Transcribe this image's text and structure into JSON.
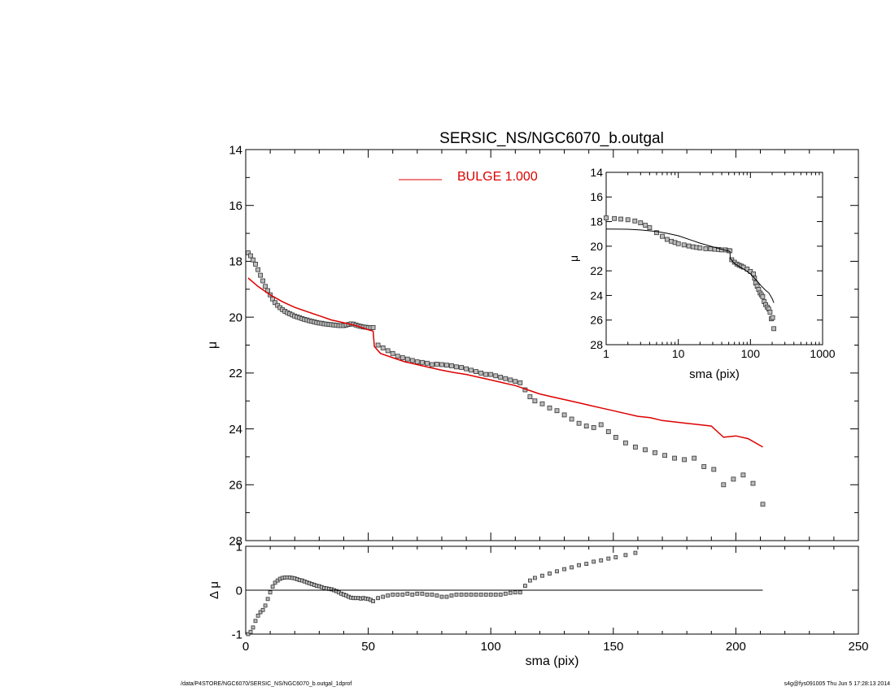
{
  "title": "SERSIC_NS/NGC6070_b.outgal",
  "footer": {
    "left": "/data/P4STORE/NGC6070/SERSIC_NS/NGC6070_b.outgal_1dprof",
    "right": "s4g@fys091005  Thu Jun  5 17:28:13 2014"
  },
  "colors": {
    "model": "#dd0000",
    "data": "#000000",
    "axes": "#000000"
  },
  "chart_data": [
    {
      "id": "main-profile",
      "type": "scatter",
      "title": "SERSIC_NS/NGC6070_b.outgal",
      "xlabel": "",
      "ylabel": "μ",
      "xlim": [
        0,
        250
      ],
      "ylim": [
        28,
        14
      ],
      "y_inverted": true,
      "xticks": [
        0,
        50,
        100,
        150,
        200,
        250
      ],
      "xticklabels": [
        "",
        "",
        "",
        "",
        "",
        ""
      ],
      "yticks": [
        14,
        16,
        18,
        20,
        22,
        24,
        26,
        28
      ],
      "legend": {
        "placement": "top-center",
        "entries": [
          {
            "label": "BULGE  1.000",
            "color": "#dd0000",
            "style": "line"
          }
        ]
      },
      "series": [
        {
          "name": "data",
          "style": "square-markers",
          "x": [
            1,
            2,
            3,
            4,
            5,
            6,
            7,
            8,
            9,
            10,
            11,
            12,
            13,
            14,
            15,
            16,
            17,
            18,
            19,
            20,
            21,
            22,
            23,
            24,
            25,
            26,
            27,
            28,
            29,
            30,
            31,
            32,
            33,
            34,
            35,
            36,
            37,
            38,
            39,
            40,
            41,
            42,
            43,
            44,
            45,
            46,
            47,
            48,
            49,
            50,
            51,
            52,
            54,
            56,
            58,
            60,
            62,
            64,
            66,
            68,
            70,
            72,
            74,
            76,
            78,
            80,
            82,
            84,
            86,
            88,
            90,
            92,
            94,
            96,
            98,
            100,
            102,
            104,
            106,
            108,
            110,
            112,
            114,
            116,
            118,
            121,
            124,
            127,
            130,
            133,
            136,
            139,
            142,
            145,
            148,
            151,
            155,
            159,
            163,
            167,
            171,
            175,
            179,
            183,
            187,
            191,
            195,
            199,
            203,
            207,
            211
          ],
          "y": [
            17.7,
            17.8,
            17.95,
            18.1,
            18.3,
            18.5,
            18.7,
            18.9,
            19.05,
            19.2,
            19.35,
            19.48,
            19.58,
            19.66,
            19.73,
            19.79,
            19.84,
            19.88,
            19.92,
            19.96,
            19.99,
            20.02,
            20.05,
            20.08,
            20.1,
            20.13,
            20.15,
            20.17,
            20.19,
            20.21,
            20.22,
            20.24,
            20.25,
            20.26,
            20.27,
            20.28,
            20.29,
            20.3,
            20.3,
            20.3,
            20.28,
            20.26,
            20.24,
            20.25,
            20.28,
            20.31,
            20.33,
            20.35,
            20.36,
            20.37,
            20.37,
            20.37,
            21.0,
            21.1,
            21.2,
            21.3,
            21.4,
            21.45,
            21.5,
            21.55,
            21.6,
            21.62,
            21.65,
            21.7,
            21.68,
            21.7,
            21.72,
            21.74,
            21.78,
            21.8,
            21.85,
            21.9,
            21.95,
            22.0,
            22.05,
            22.05,
            22.1,
            22.15,
            22.2,
            22.25,
            22.3,
            22.35,
            22.6,
            22.85,
            23.0,
            23.1,
            23.25,
            23.35,
            23.5,
            23.65,
            23.8,
            23.9,
            23.95,
            23.85,
            24.1,
            24.3,
            24.5,
            24.65,
            24.75,
            24.85,
            24.95,
            25.05,
            25.1,
            25.05,
            25.35,
            25.45,
            26.0,
            25.8,
            25.65,
            25.95,
            26.7
          ]
        },
        {
          "name": "BULGE  1.000",
          "style": "line",
          "x": [
            1,
            5,
            10,
            15,
            20,
            25,
            30,
            35,
            40,
            45,
            50,
            52,
            52.5,
            55,
            60,
            65,
            70,
            75,
            80,
            85,
            90,
            95,
            100,
            105,
            110,
            115,
            120,
            125,
            130,
            135,
            140,
            145,
            150,
            155,
            160,
            165,
            170,
            175,
            180,
            185,
            190,
            195,
            200,
            205,
            211
          ],
          "y": [
            18.6,
            18.9,
            19.2,
            19.45,
            19.65,
            19.8,
            19.95,
            20.1,
            20.2,
            20.3,
            20.45,
            20.5,
            21.05,
            21.3,
            21.45,
            21.6,
            21.7,
            21.8,
            21.9,
            21.98,
            22.05,
            22.15,
            22.25,
            22.35,
            22.45,
            22.6,
            22.75,
            22.85,
            22.95,
            23.05,
            23.15,
            23.25,
            23.35,
            23.45,
            23.55,
            23.6,
            23.7,
            23.75,
            23.8,
            23.85,
            23.9,
            24.3,
            24.25,
            24.35,
            24.65
          ]
        }
      ]
    },
    {
      "id": "residuals",
      "type": "scatter",
      "xlabel": "sma (pix)",
      "ylabel": "Δ μ",
      "xlim": [
        0,
        250
      ],
      "ylim": [
        -1,
        1
      ],
      "xticks": [
        0,
        50,
        100,
        150,
        200,
        250
      ],
      "xticklabels": [
        "0",
        "50",
        "100",
        "150",
        "200",
        "250"
      ],
      "yticks": [
        -1,
        0,
        1
      ],
      "series": [
        {
          "name": "residual",
          "style": "square-markers",
          "x": [
            1,
            2,
            3,
            4,
            5,
            6,
            7,
            8,
            9,
            10,
            11,
            12,
            13,
            14,
            15,
            16,
            17,
            18,
            19,
            20,
            21,
            22,
            23,
            24,
            25,
            26,
            27,
            28,
            29,
            30,
            31,
            32,
            33,
            34,
            35,
            36,
            37,
            38,
            39,
            40,
            41,
            42,
            43,
            44,
            45,
            46,
            47,
            48,
            49,
            50,
            51,
            52,
            54,
            56,
            58,
            60,
            62,
            64,
            66,
            68,
            70,
            72,
            74,
            76,
            78,
            80,
            82,
            84,
            86,
            88,
            90,
            92,
            94,
            96,
            98,
            100,
            102,
            104,
            106,
            108,
            110,
            112,
            114,
            116,
            118,
            121,
            124,
            127,
            130,
            133,
            136,
            139,
            142,
            145,
            148,
            151,
            155,
            159
          ],
          "y": [
            -1.0,
            -0.95,
            -0.85,
            -0.7,
            -0.58,
            -0.5,
            -0.45,
            -0.35,
            -0.2,
            -0.05,
            0.08,
            0.17,
            0.22,
            0.26,
            0.28,
            0.29,
            0.29,
            0.29,
            0.28,
            0.27,
            0.25,
            0.23,
            0.22,
            0.2,
            0.18,
            0.16,
            0.14,
            0.12,
            0.1,
            0.09,
            0.07,
            0.05,
            0.04,
            0.03,
            0.02,
            0.0,
            -0.02,
            -0.05,
            -0.08,
            -0.1,
            -0.12,
            -0.15,
            -0.17,
            -0.18,
            -0.18,
            -0.18,
            -0.19,
            -0.18,
            -0.19,
            -0.2,
            -0.22,
            -0.25,
            -0.18,
            -0.15,
            -0.12,
            -0.1,
            -0.1,
            -0.1,
            -0.08,
            -0.1,
            -0.08,
            -0.08,
            -0.1,
            -0.1,
            -0.12,
            -0.15,
            -0.15,
            -0.12,
            -0.1,
            -0.1,
            -0.1,
            -0.1,
            -0.1,
            -0.1,
            -0.1,
            -0.1,
            -0.1,
            -0.1,
            -0.08,
            -0.06,
            -0.05,
            -0.05,
            0.1,
            0.22,
            0.28,
            0.33,
            0.38,
            0.43,
            0.48,
            0.52,
            0.57,
            0.6,
            0.65,
            0.68,
            0.72,
            0.75,
            0.8,
            0.85
          ]
        },
        {
          "name": "zero",
          "style": "line",
          "x": [
            0,
            211
          ],
          "y": [
            0,
            0
          ]
        }
      ]
    },
    {
      "id": "inset-log-profile",
      "type": "scatter",
      "xlabel": "sma (pix)",
      "ylabel": "μ",
      "xscale": "log",
      "xlim": [
        1,
        1000
      ],
      "ylim": [
        28,
        14
      ],
      "y_inverted": true,
      "xticks": [
        1,
        10,
        100,
        1000
      ],
      "xticklabels": [
        "1",
        "10",
        "100",
        "1000"
      ],
      "yticks": [
        14,
        16,
        18,
        20,
        22,
        24,
        26,
        28
      ],
      "series": [
        {
          "name": "data",
          "style": "square-markers",
          "x": [
            1,
            1.3,
            1.6,
            2,
            2.5,
            3,
            3.5,
            4,
            5,
            6,
            7,
            8,
            9,
            10,
            12,
            14,
            16,
            18,
            20,
            24,
            28,
            32,
            36,
            40,
            45,
            50,
            52,
            55,
            60,
            65,
            70,
            75,
            80,
            90,
            100,
            110,
            114,
            118,
            124,
            130,
            136,
            142,
            148,
            155,
            163,
            171,
            179,
            187,
            195,
            203,
            211
          ],
          "y": [
            17.7,
            17.75,
            17.8,
            17.85,
            17.95,
            18.1,
            18.3,
            18.5,
            18.9,
            19.2,
            19.45,
            19.6,
            19.7,
            19.8,
            19.9,
            19.98,
            20.05,
            20.1,
            20.15,
            20.2,
            20.22,
            20.25,
            20.27,
            20.3,
            20.3,
            20.36,
            20.37,
            21.1,
            21.3,
            21.45,
            21.55,
            21.62,
            21.7,
            21.85,
            22.05,
            22.25,
            22.6,
            23.0,
            23.25,
            23.5,
            23.8,
            23.95,
            24.1,
            24.5,
            24.75,
            24.95,
            25.1,
            25.35,
            25.9,
            25.8,
            26.7
          ]
        },
        {
          "name": "model",
          "style": "line",
          "x": [
            1,
            2,
            3,
            5,
            7,
            10,
            15,
            20,
            30,
            40,
            50,
            52,
            52.5,
            60,
            70,
            80,
            100,
            120,
            140,
            160,
            180,
            200,
            211
          ],
          "y": [
            18.6,
            18.62,
            18.68,
            18.8,
            18.95,
            19.15,
            19.5,
            19.75,
            20.05,
            20.25,
            20.4,
            20.45,
            21.0,
            21.4,
            21.65,
            21.85,
            22.25,
            22.75,
            23.2,
            23.55,
            23.8,
            24.25,
            24.6
          ]
        }
      ]
    }
  ]
}
